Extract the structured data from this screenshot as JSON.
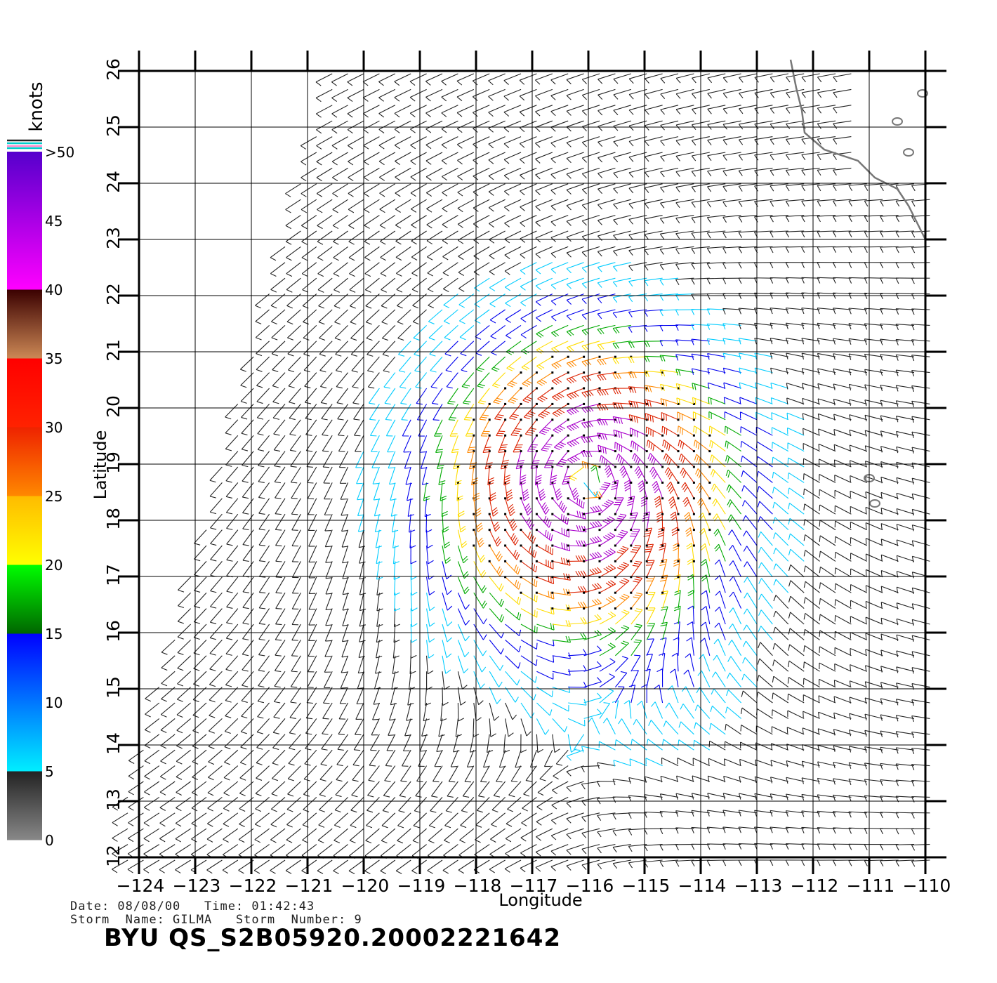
{
  "chart_data": {
    "type": "wind-barb map",
    "title": "BYU QS_S2B05920.20002221642",
    "xlabel": "Longitude",
    "ylabel": "Latitude",
    "xlim": [
      -124,
      -110
    ],
    "ylim": [
      12,
      26
    ],
    "x_ticks": [
      "-124",
      "-123",
      "-122",
      "-121",
      "-120",
      "-119",
      "-118",
      "-117",
      "-116",
      "-115",
      "-114",
      "-113",
      "-112",
      "-111",
      "-110"
    ],
    "y_ticks": [
      "12",
      "13",
      "14",
      "15",
      "16",
      "17",
      "18",
      "19",
      "20",
      "21",
      "22",
      "23",
      "24",
      "25",
      "26"
    ],
    "grid": true,
    "storm_center": {
      "lon": -116.0,
      "lat": 18.7
    },
    "colorbar": {
      "units": "knots",
      "labels": [
        "0",
        "5",
        "10",
        "15",
        "20",
        "25",
        "30",
        "35",
        "40",
        "45",
        ">50"
      ],
      "bands": [
        {
          "from": 0,
          "to": 5,
          "colors": [
            "#888888",
            "#222222"
          ]
        },
        {
          "from": 5,
          "to": 10,
          "colors": [
            "#00eeff",
            "#0077ff"
          ]
        },
        {
          "from": 10,
          "to": 15,
          "colors": [
            "#0077ff",
            "#0000ff"
          ]
        },
        {
          "from": 15,
          "to": 20,
          "colors": [
            "#006600",
            "#00ff00"
          ]
        },
        {
          "from": 20,
          "to": 25,
          "colors": [
            "#ffff00",
            "#ffbb00"
          ]
        },
        {
          "from": 25,
          "to": 30,
          "colors": [
            "#ff8800",
            "#ee2200"
          ]
        },
        {
          "from": 30,
          "to": 35,
          "colors": [
            "#ff2200",
            "#ff0000"
          ]
        },
        {
          "from": 35,
          "to": 40,
          "colors": [
            "#cc8855",
            "#3a0000"
          ]
        },
        {
          "from": 40,
          "to": 50,
          "colors": [
            "#ff00ff",
            "#5500cc"
          ]
        }
      ]
    },
    "wind_colors": {
      "calm": "#222222",
      "light": "#00ccff",
      "moderate": "#0000ee",
      "fresh": "#00aa00",
      "strong": "#ffdd00",
      "gale": "#ff8800",
      "storm": "#dd2200",
      "severe": "#aa00cc"
    },
    "coast_color": "#777777"
  },
  "info": {
    "date_line": "Date: 08/08/00   Time: 01:42:43",
    "storm_line": "Storm  Name: GILMA   Storm  Number: 9"
  }
}
